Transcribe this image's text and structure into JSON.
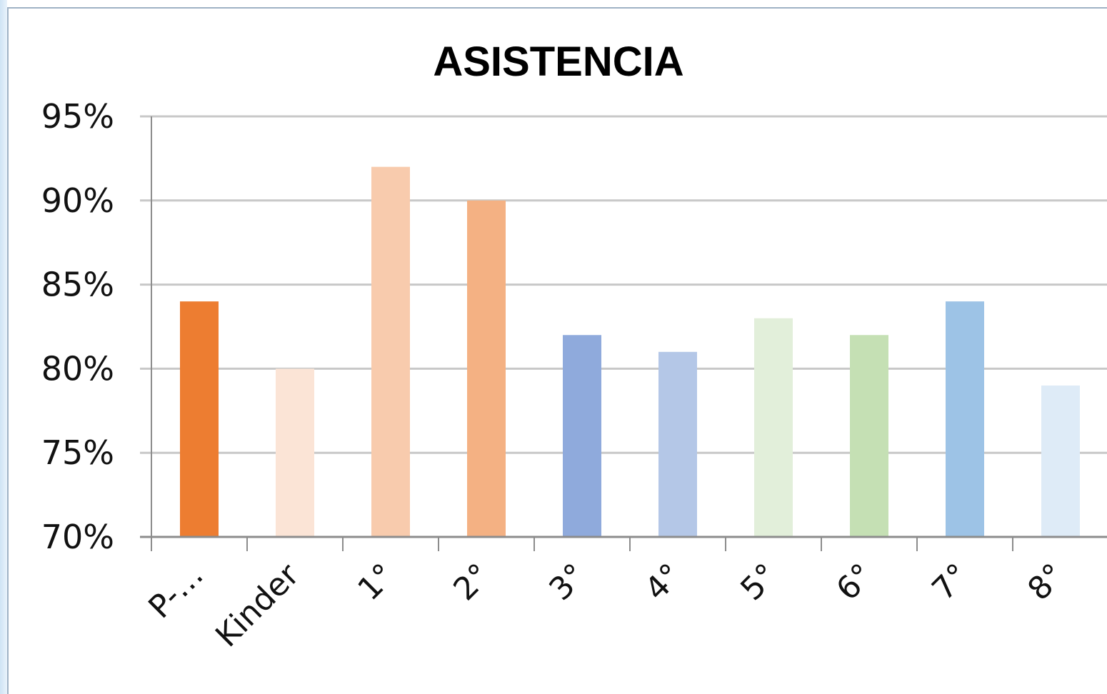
{
  "chart_data": {
    "type": "bar",
    "title": "ASISTENCIA",
    "xlabel": "",
    "ylabel": "",
    "categories": [
      "P-…",
      "Kinder",
      "1°",
      "2°",
      "3°",
      "4°",
      "5°",
      "6°",
      "7°",
      "8°"
    ],
    "values": [
      84,
      80,
      92,
      90,
      82,
      81,
      83,
      82,
      84,
      79
    ],
    "colors": [
      "#ed7d31",
      "#fbe4d6",
      "#f8cbad",
      "#f4b183",
      "#8faadc",
      "#b4c7e7",
      "#e2efda",
      "#c5e0b4",
      "#9dc3e6",
      "#deebf7"
    ],
    "ylim": [
      70,
      95
    ],
    "yticks": [
      "70%",
      "75%",
      "80%",
      "85%",
      "90%",
      "95%"
    ],
    "ytick_values": [
      70,
      75,
      80,
      85,
      90,
      95
    ],
    "grid": true,
    "legend": "none"
  }
}
